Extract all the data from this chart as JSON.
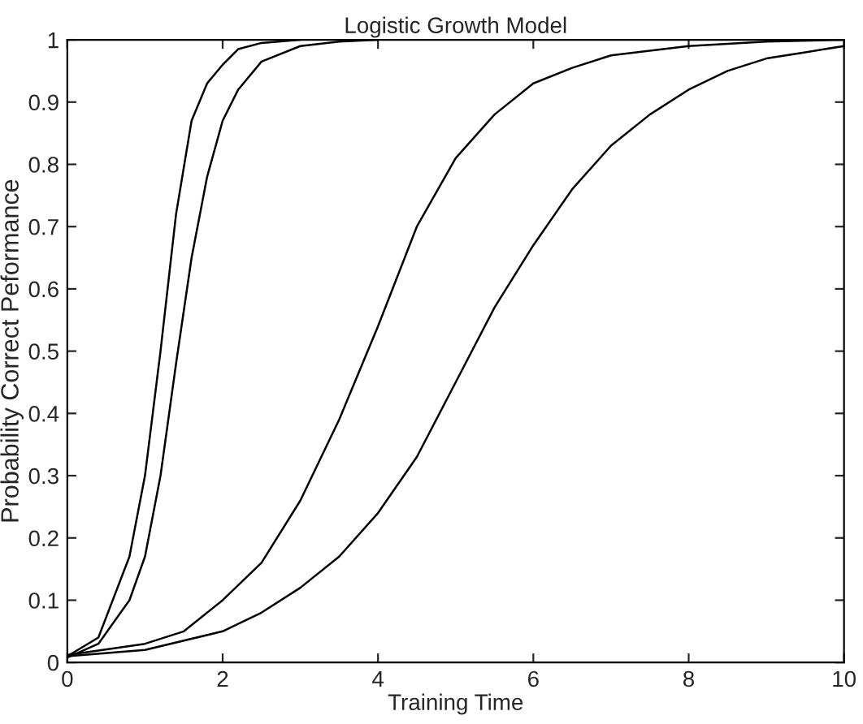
{
  "chart_data": {
    "type": "line",
    "title": "Logistic Growth Model",
    "xlabel": "Training Time",
    "ylabel": "Probability Correct Peformance",
    "xlim": [
      0,
      10
    ],
    "ylim": [
      0,
      1
    ],
    "xticks": [
      0,
      2,
      4,
      6,
      8,
      10
    ],
    "yticks": [
      0,
      0.1,
      0.2,
      0.3,
      0.4,
      0.5,
      0.6,
      0.7,
      0.8,
      0.9,
      1
    ],
    "grid": false,
    "marker": "none",
    "line_style": "solid",
    "series": [
      {
        "color": "#000000",
        "x": [
          0,
          0.4,
          0.8,
          1.0,
          1.2,
          1.4,
          1.6,
          1.8,
          2.0,
          2.2,
          2.5,
          3
        ],
        "values": [
          0.01,
          0.04,
          0.17,
          0.3,
          0.5,
          0.72,
          0.87,
          0.93,
          0.96,
          0.985,
          0.995,
          1.0
        ]
      },
      {
        "color": "#000000",
        "x": [
          0,
          0.4,
          0.8,
          1.0,
          1.2,
          1.4,
          1.6,
          1.8,
          2.0,
          2.2,
          2.5,
          3,
          3.5,
          4
        ],
        "values": [
          0.008,
          0.03,
          0.1,
          0.17,
          0.3,
          0.48,
          0.65,
          0.78,
          0.87,
          0.92,
          0.965,
          0.99,
          0.997,
          1.0
        ]
      },
      {
        "color": "#000000",
        "x": [
          0,
          1,
          1.5,
          2,
          2.5,
          3,
          3.5,
          4,
          4.5,
          5,
          5.5,
          6,
          6.5,
          7,
          8,
          9,
          10
        ],
        "values": [
          0.012,
          0.03,
          0.05,
          0.1,
          0.16,
          0.26,
          0.39,
          0.54,
          0.7,
          0.81,
          0.88,
          0.93,
          0.955,
          0.975,
          0.99,
          0.997,
          1.0
        ]
      },
      {
        "color": "#000000",
        "x": [
          0,
          1,
          2,
          2.5,
          3,
          3.5,
          4,
          4.5,
          5,
          5.5,
          6,
          6.5,
          7,
          7.5,
          8,
          8.5,
          9,
          9.5,
          10
        ],
        "values": [
          0.01,
          0.02,
          0.05,
          0.08,
          0.12,
          0.17,
          0.24,
          0.33,
          0.45,
          0.57,
          0.67,
          0.76,
          0.83,
          0.88,
          0.92,
          0.95,
          0.97,
          0.98,
          0.99
        ]
      }
    ]
  }
}
